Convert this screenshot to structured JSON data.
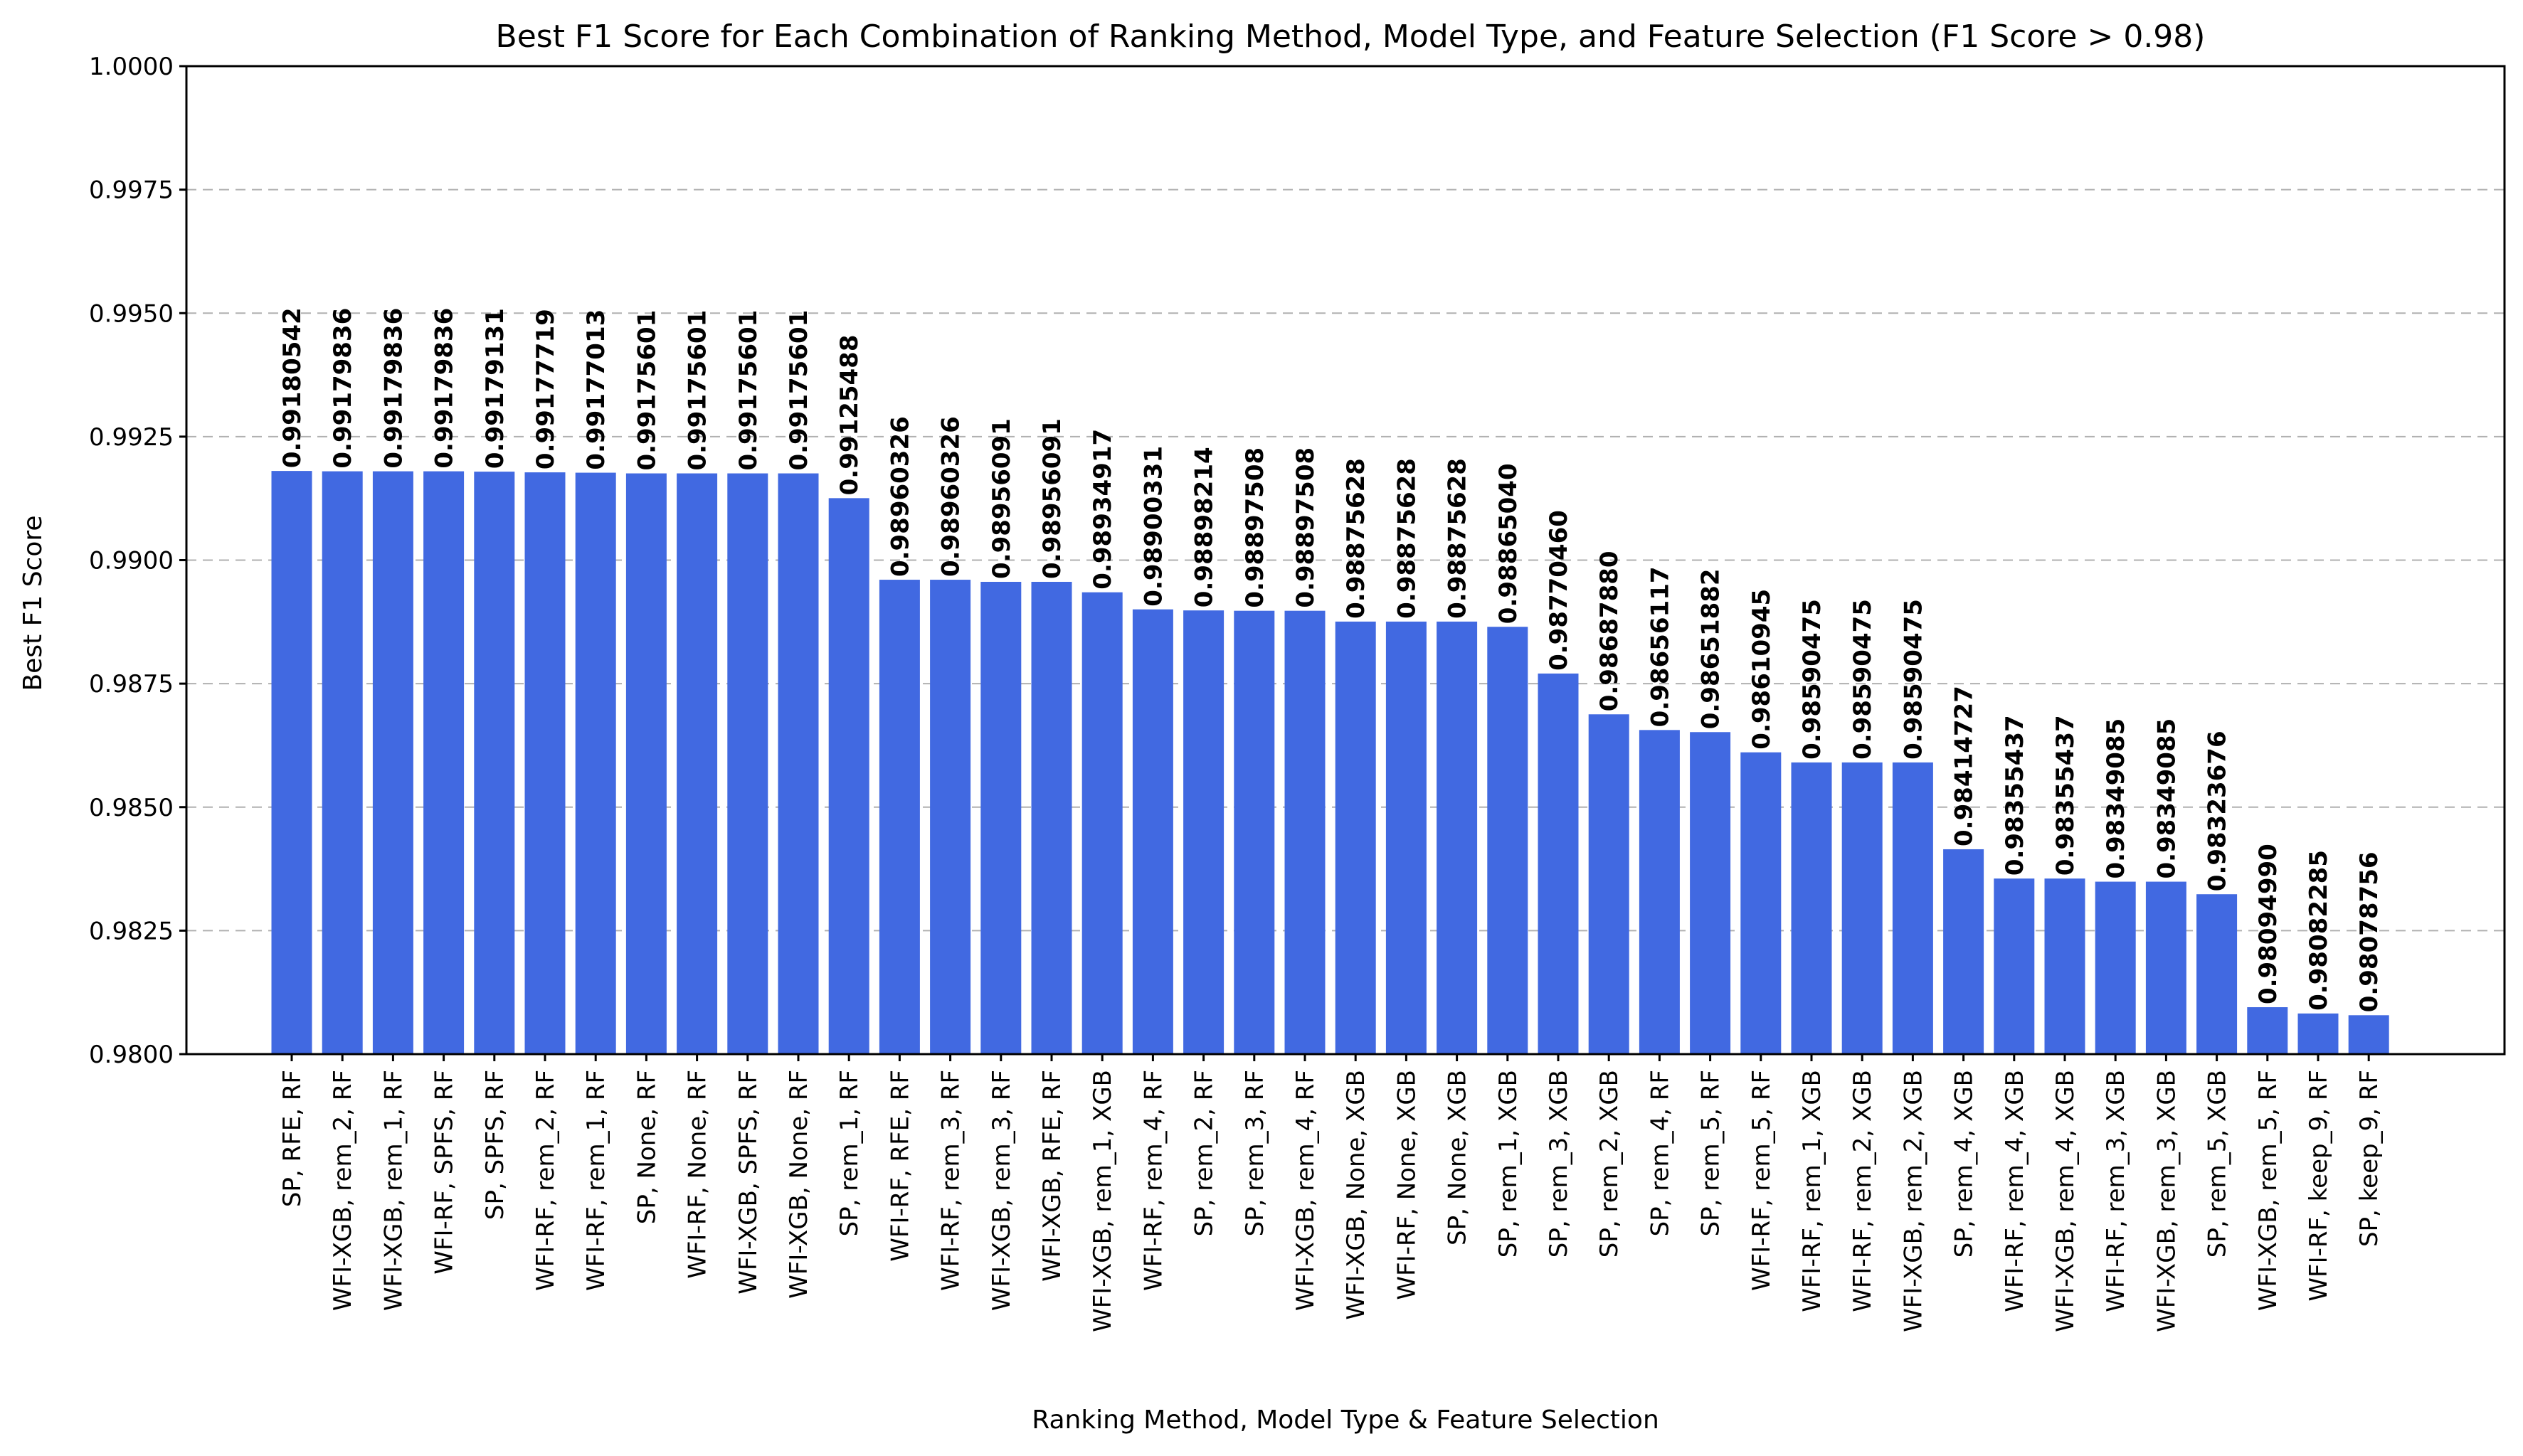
{
  "chart_data": {
    "type": "bar",
    "title": "Best F1 Score for Each Combination of Ranking Method, Model Type, and Feature Selection (F1 Score > 0.98)",
    "xlabel": "Ranking Method, Model Type & Feature Selection",
    "ylabel": "Best F1 Score",
    "ylim": [
      0.98,
      1.0
    ],
    "yticks": [
      "0.9800",
      "0.9825",
      "0.9850",
      "0.9875",
      "0.9900",
      "0.9925",
      "0.9950",
      "0.9975",
      "1.0000"
    ],
    "grid": "y, dashed",
    "bar_color": "#4169e1",
    "categories": [
      "SP, RFE, RF",
      "WFI-XGB, rem_2, RF",
      "WFI-XGB, rem_1, RF",
      "WFI-RF, SPFS, RF",
      "SP, SPFS, RF",
      "WFI-RF, rem_2, RF",
      "WFI-RF, rem_1, RF",
      "SP, None, RF",
      "WFI-RF, None, RF",
      "WFI-XGB, SPFS, RF",
      "WFI-XGB, None, RF",
      "SP, rem_1, RF",
      "WFI-RF, RFE, RF",
      "WFI-RF, rem_3, RF",
      "WFI-XGB, rem_3, RF",
      "WFI-XGB, RFE, RF",
      "WFI-XGB, rem_1, XGB",
      "WFI-RF, rem_4, RF",
      "SP, rem_2, RF",
      "SP, rem_3, RF",
      "WFI-XGB, rem_4, RF",
      "WFI-XGB, None, XGB",
      "WFI-RF, None, XGB",
      "SP, None, XGB",
      "SP, rem_1, XGB",
      "SP, rem_3, XGB",
      "SP, rem_2, XGB",
      "SP, rem_4, RF",
      "SP, rem_5, RF",
      "WFI-RF, rem_5, RF",
      "WFI-RF, rem_1, XGB",
      "WFI-RF, rem_2, XGB",
      "WFI-XGB, rem_2, XGB",
      "SP, rem_4, XGB",
      "WFI-RF, rem_4, XGB",
      "WFI-XGB, rem_4, XGB",
      "WFI-RF, rem_3, XGB",
      "WFI-XGB, rem_3, XGB",
      "SP, rem_5, XGB",
      "WFI-XGB, rem_5, RF",
      "WFI-RF, keep_9, RF",
      "SP, keep_9, RF"
    ],
    "values": [
      0.99180542,
      0.99179836,
      0.99179836,
      0.99179836,
      0.99179131,
      0.99177719,
      0.99177013,
      0.99175601,
      0.99175601,
      0.99175601,
      0.99175601,
      0.99125488,
      0.98960326,
      0.98960326,
      0.98956091,
      0.98956091,
      0.98934917,
      0.98900331,
      0.98898214,
      0.98897508,
      0.98897508,
      0.98875628,
      0.98875628,
      0.98875628,
      0.9886504,
      0.9877046,
      0.9868788,
      0.98656117,
      0.98651882,
      0.98610945,
      0.98590475,
      0.98590475,
      0.98590475,
      0.98414727,
      0.98355437,
      0.98355437,
      0.98349085,
      0.98349085,
      0.98323676,
      0.9809499,
      0.98082285,
      0.98078756
    ],
    "data_labels": [
      "0.99180542",
      "0.99179836",
      "0.99179836",
      "0.99179836",
      "0.99179131",
      "0.99177719",
      "0.99177013",
      "0.99175601",
      "0.99175601",
      "0.99175601",
      "0.99175601",
      "0.99125488",
      "0.98960326",
      "0.98960326",
      "0.98956091",
      "0.98956091",
      "0.98934917",
      "0.98900331",
      "0.98898214",
      "0.98897508",
      "0.98897508",
      "0.98875628",
      "0.98875628",
      "0.98875628",
      "0.98865040",
      "0.98770460",
      "0.98687880",
      "0.98656117",
      "0.98651882",
      "0.98610945",
      "0.98590475",
      "0.98590475",
      "0.98590475",
      "0.98414727",
      "0.98355437",
      "0.98355437",
      "0.98349085",
      "0.98349085",
      "0.98323676",
      "0.98094990",
      "0.98082285",
      "0.98078756"
    ]
  }
}
